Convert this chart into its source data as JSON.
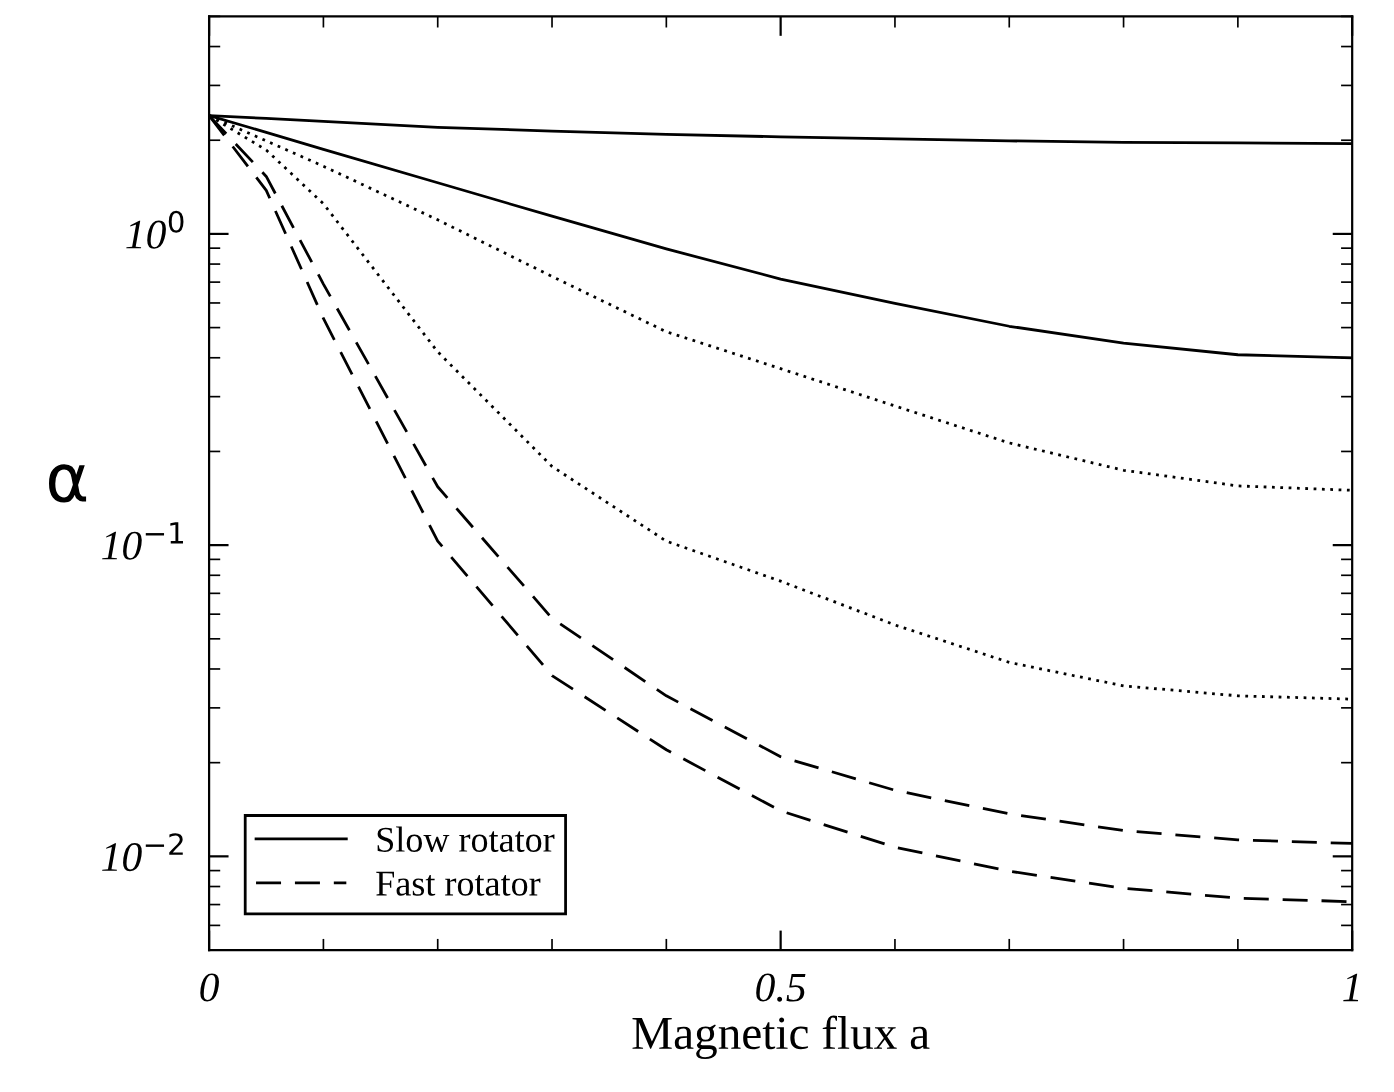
{
  "chart_data": {
    "type": "line",
    "xlabel": "Magnetic flux a",
    "ylabel": "α",
    "log": "y",
    "x": [
      0,
      0.05,
      0.1,
      0.2,
      0.3,
      0.4,
      0.5,
      0.6,
      0.7,
      0.8,
      0.9,
      1
    ],
    "series": [
      {
        "name": "Slow rotator",
        "color": "#000000",
        "line_style": "solid",
        "values": [
          2.4,
          2.35,
          2.3,
          2.2,
          2.14,
          2.09,
          2.05,
          2.02,
          1.99,
          1.97,
          1.96,
          1.95
        ]
      },
      {
        "color": "#000000",
        "line_style": "solid",
        "values": [
          2.4,
          2.12,
          1.87,
          1.46,
          1.14,
          0.895,
          0.716,
          0.598,
          0.505,
          0.446,
          0.409,
          0.4
        ]
      },
      {
        "color": "#000000",
        "line_style": "dotted",
        "values": [
          2.4,
          1.99,
          1.65,
          1.11,
          0.73,
          0.485,
          0.369,
          0.28,
          0.213,
          0.174,
          0.155,
          0.15
        ]
      },
      {
        "color": "#000000",
        "line_style": "dotted",
        "values": [
          2.4,
          1.86,
          1.25,
          0.418,
          0.179,
          0.103,
          0.0766,
          0.0554,
          0.042,
          0.0353,
          0.0328,
          0.032
        ]
      },
      {
        "name": "Fast rotator",
        "color": "#000000",
        "line_style": "dashed",
        "values": [
          2.4,
          1.53,
          0.69,
          0.154,
          0.0582,
          0.0328,
          0.0209,
          0.0163,
          0.0137,
          0.0121,
          0.0113,
          0.011
        ]
      },
      {
        "color": "#000000",
        "line_style": "dashed",
        "values": [
          2.4,
          1.38,
          0.535,
          0.103,
          0.0381,
          0.022,
          0.014,
          0.0107,
          0.00896,
          0.0079,
          0.00734,
          0.00715
        ]
      }
    ],
    "xlim": [
      0,
      1
    ],
    "xticks": [
      0,
      0.5,
      1
    ],
    "ylim": [
      0.005,
      5
    ],
    "yticks": [
      {
        "value": 1,
        "label": "10$^{0}$"
      },
      {
        "value": 0.1,
        "label": "10$^{−1}$"
      },
      {
        "value": 0.01,
        "label": "10$^{−2}$"
      }
    ],
    "grid": false,
    "legend": "bottom left",
    "marker": "none"
  }
}
